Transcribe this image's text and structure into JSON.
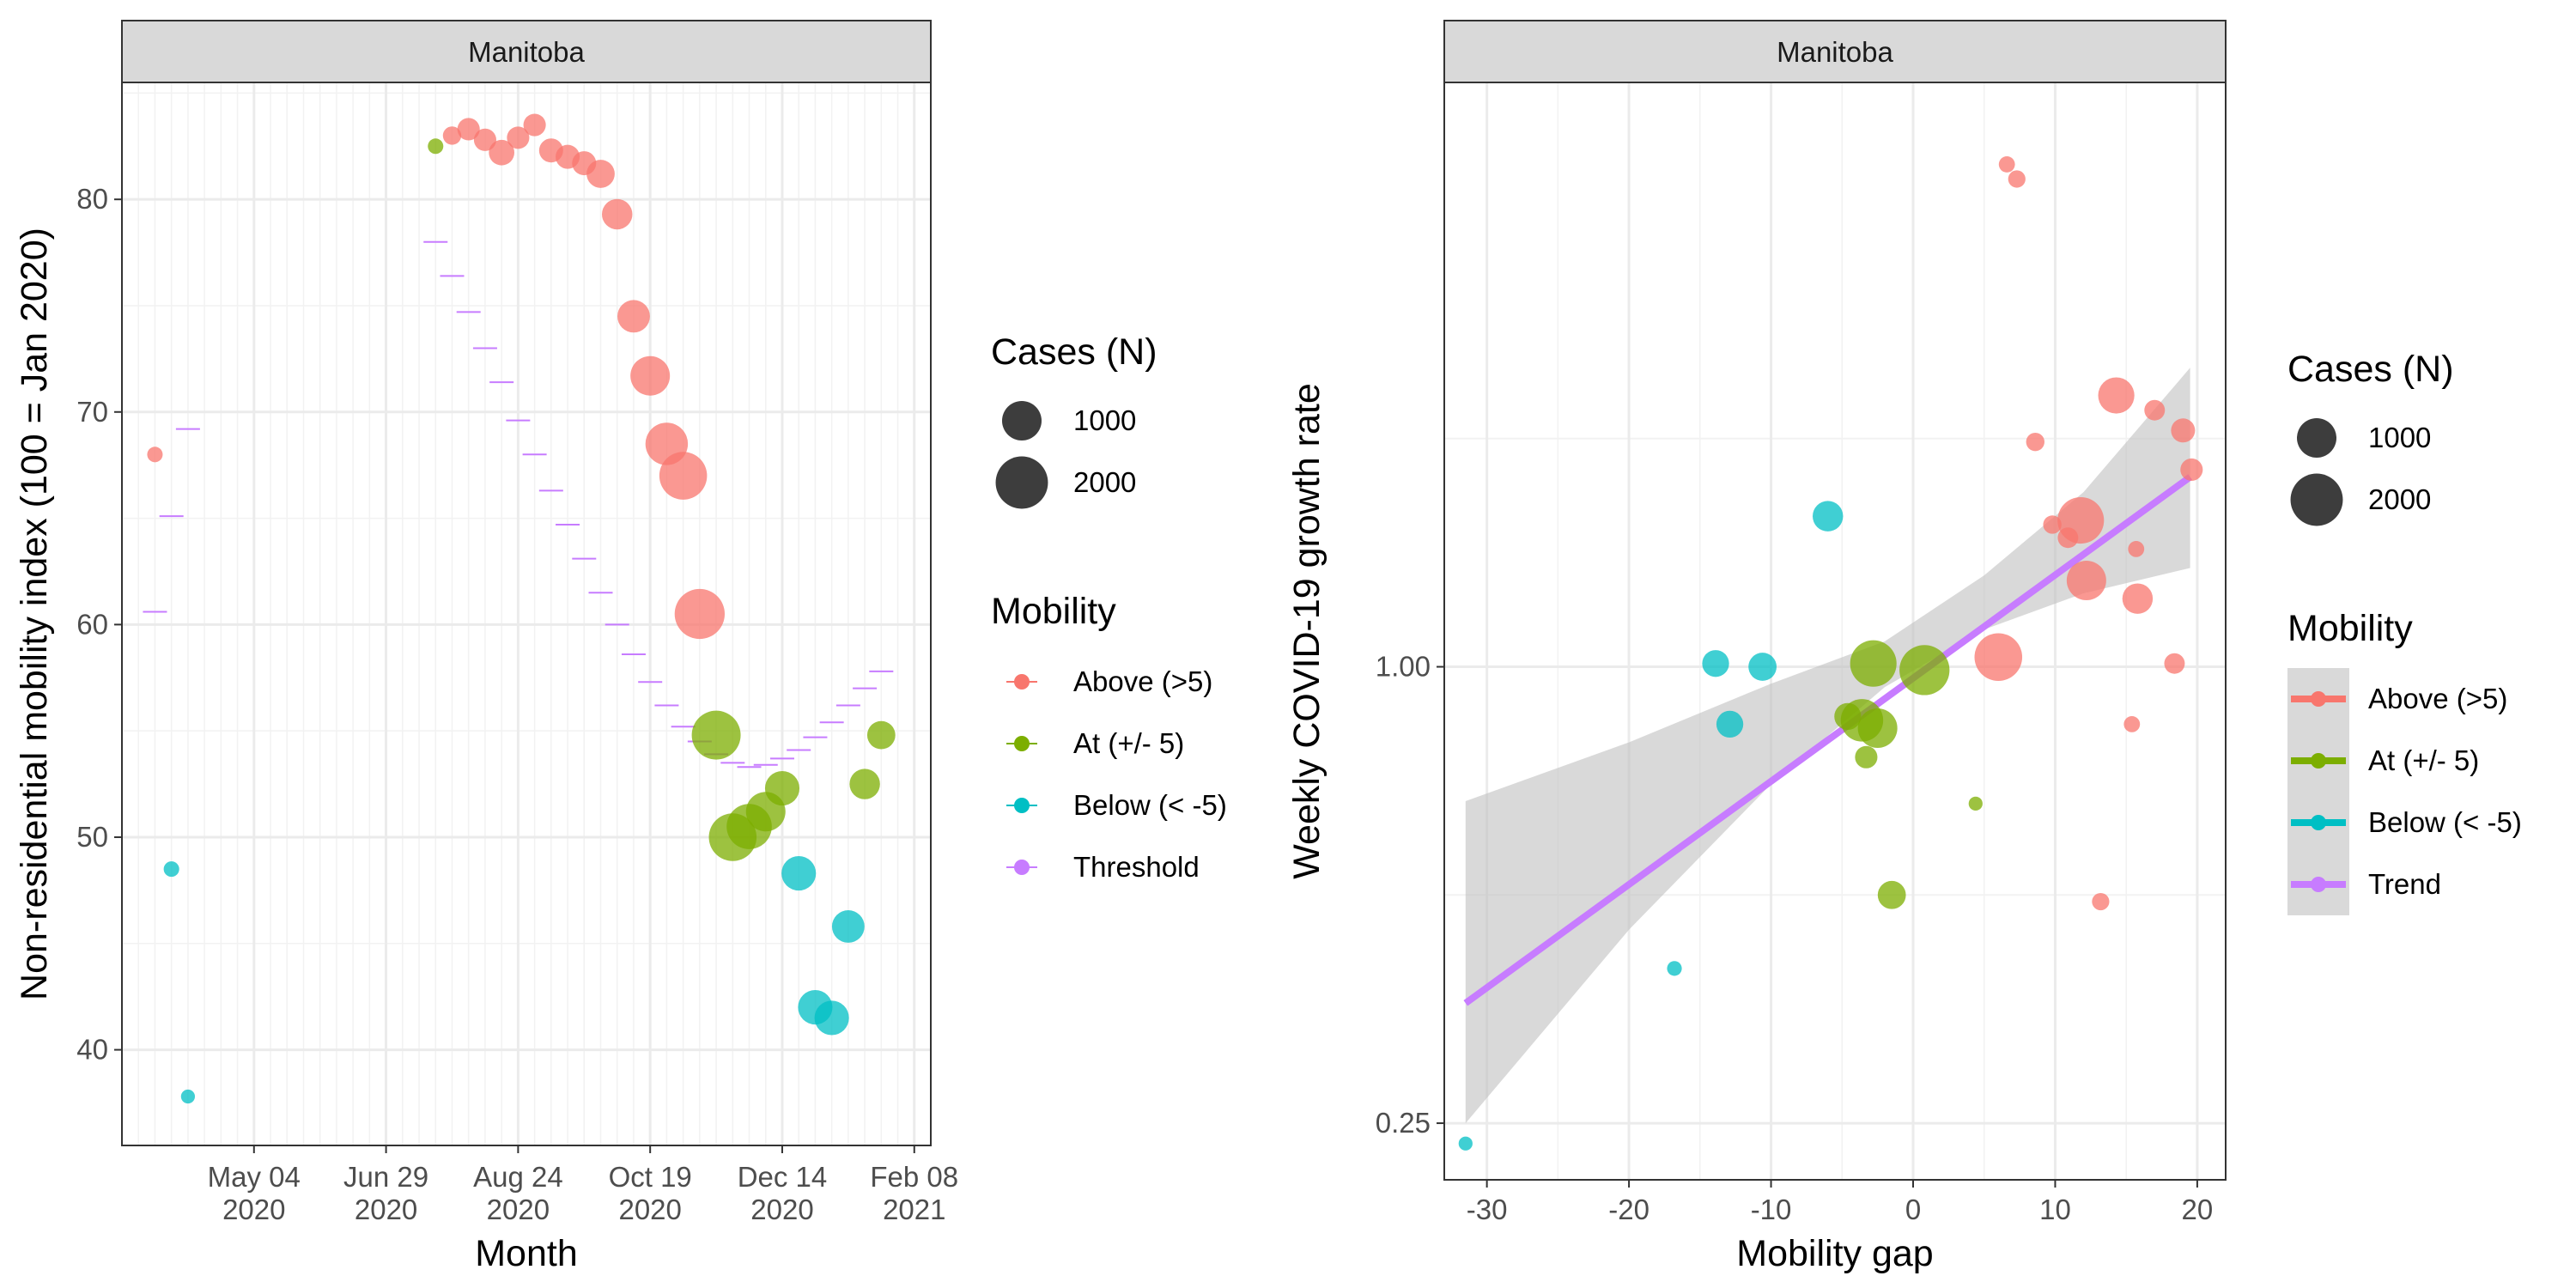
{
  "colors": {
    "above": "#F8766D",
    "at": "#7CAE00",
    "below": "#00BFC4",
    "threshold": "#C77CFF",
    "trend": "#C77CFF",
    "ribbon": "#bfbfbf",
    "strip_fill": "#d9d9d9",
    "grid_major": "#ebebeb"
  },
  "chart_data": [
    {
      "type": "scatter",
      "panel": "Manitoba",
      "xlabel": "Month",
      "ylabel": "Non-residential mobility index (100 = Jan 2020)",
      "x_ticks": [
        {
          "date": "2020-05-04",
          "line1": "May 04",
          "line2": "2020"
        },
        {
          "date": "2020-06-29",
          "line1": "Jun 29",
          "line2": "2020"
        },
        {
          "date": "2020-08-24",
          "line1": "Aug 24",
          "line2": "2020"
        },
        {
          "date": "2020-10-19",
          "line1": "Oct 19",
          "line2": "2020"
        },
        {
          "date": "2020-12-14",
          "line1": "Dec 14",
          "line2": "2020"
        },
        {
          "date": "2021-02-08",
          "line1": "Feb 08",
          "line2": "2021"
        }
      ],
      "xlim": [
        "2020-03-09",
        "2021-02-15"
      ],
      "y_ticks": [
        40,
        50,
        60,
        70,
        80
      ],
      "ylim": [
        35.5,
        85.5
      ],
      "points": [
        {
          "date": "2020-03-23",
          "value": 68.0,
          "cases": 50,
          "category": "above"
        },
        {
          "date": "2020-03-30",
          "value": 48.5,
          "cases": 50,
          "category": "below"
        },
        {
          "date": "2020-04-06",
          "value": 37.8,
          "cases": 30,
          "category": "below"
        },
        {
          "date": "2020-07-20",
          "value": 82.5,
          "cases": 50,
          "category": "at"
        },
        {
          "date": "2020-07-27",
          "value": 83.0,
          "cases": 100,
          "category": "above"
        },
        {
          "date": "2020-08-03",
          "value": 83.3,
          "cases": 200,
          "category": "above"
        },
        {
          "date": "2020-08-10",
          "value": 82.8,
          "cases": 200,
          "category": "above"
        },
        {
          "date": "2020-08-17",
          "value": 82.2,
          "cases": 300,
          "category": "above"
        },
        {
          "date": "2020-08-24",
          "value": 82.9,
          "cases": 200,
          "category": "above"
        },
        {
          "date": "2020-08-31",
          "value": 83.5,
          "cases": 200,
          "category": "above"
        },
        {
          "date": "2020-09-07",
          "value": 82.3,
          "cases": 250,
          "category": "above"
        },
        {
          "date": "2020-09-14",
          "value": 82.0,
          "cases": 250,
          "category": "above"
        },
        {
          "date": "2020-09-21",
          "value": 81.7,
          "cases": 250,
          "category": "above"
        },
        {
          "date": "2020-09-28",
          "value": 81.2,
          "cases": 400,
          "category": "above"
        },
        {
          "date": "2020-10-05",
          "value": 79.3,
          "cases": 500,
          "category": "above"
        },
        {
          "date": "2020-10-12",
          "value": 74.5,
          "cases": 600,
          "category": "above"
        },
        {
          "date": "2020-10-19",
          "value": 71.7,
          "cases": 1000,
          "category": "above"
        },
        {
          "date": "2020-10-26",
          "value": 68.5,
          "cases": 1200,
          "category": "above"
        },
        {
          "date": "2020-11-02",
          "value": 67.0,
          "cases": 1600,
          "category": "above"
        },
        {
          "date": "2020-11-09",
          "value": 60.5,
          "cases": 1800,
          "category": "above"
        },
        {
          "date": "2020-11-16",
          "value": 54.8,
          "cases": 1700,
          "category": "at"
        },
        {
          "date": "2020-11-23",
          "value": 50.0,
          "cases": 1600,
          "category": "at"
        },
        {
          "date": "2020-11-30",
          "value": 50.5,
          "cases": 1400,
          "category": "at"
        },
        {
          "date": "2020-12-07",
          "value": 51.2,
          "cases": 1000,
          "category": "at"
        },
        {
          "date": "2020-12-14",
          "value": 52.3,
          "cases": 700,
          "category": "at"
        },
        {
          "date": "2020-12-21",
          "value": 48.3,
          "cases": 700,
          "category": "below"
        },
        {
          "date": "2020-12-28",
          "value": 42.0,
          "cases": 700,
          "category": "below"
        },
        {
          "date": "2021-01-04",
          "value": 41.5,
          "cases": 700,
          "category": "below"
        },
        {
          "date": "2021-01-11",
          "value": 45.8,
          "cases": 600,
          "category": "below"
        },
        {
          "date": "2021-01-18",
          "value": 52.5,
          "cases": 500,
          "category": "at"
        },
        {
          "date": "2021-01-25",
          "value": 54.8,
          "cases": 400,
          "category": "at"
        }
      ],
      "thresholds": [
        {
          "date": "2020-03-23",
          "value": 60.6
        },
        {
          "date": "2020-03-30",
          "value": 65.1
        },
        {
          "date": "2020-04-06",
          "value": 69.2
        },
        {
          "date": "2020-07-20",
          "value": 78.0
        },
        {
          "date": "2020-07-27",
          "value": 76.4
        },
        {
          "date": "2020-08-03",
          "value": 74.7
        },
        {
          "date": "2020-08-10",
          "value": 73.0
        },
        {
          "date": "2020-08-17",
          "value": 71.4
        },
        {
          "date": "2020-08-24",
          "value": 69.6
        },
        {
          "date": "2020-08-31",
          "value": 68.0
        },
        {
          "date": "2020-09-07",
          "value": 66.3
        },
        {
          "date": "2020-09-14",
          "value": 64.7
        },
        {
          "date": "2020-09-21",
          "value": 63.1
        },
        {
          "date": "2020-09-28",
          "value": 61.5
        },
        {
          "date": "2020-10-05",
          "value": 60.0
        },
        {
          "date": "2020-10-12",
          "value": 58.6
        },
        {
          "date": "2020-10-19",
          "value": 57.3
        },
        {
          "date": "2020-10-26",
          "value": 56.2
        },
        {
          "date": "2020-11-02",
          "value": 55.2
        },
        {
          "date": "2020-11-09",
          "value": 54.5
        },
        {
          "date": "2020-11-16",
          "value": 53.9
        },
        {
          "date": "2020-11-23",
          "value": 53.5
        },
        {
          "date": "2020-11-30",
          "value": 53.3
        },
        {
          "date": "2020-12-07",
          "value": 53.4
        },
        {
          "date": "2020-12-14",
          "value": 53.7
        },
        {
          "date": "2020-12-21",
          "value": 54.1
        },
        {
          "date": "2020-12-28",
          "value": 54.7
        },
        {
          "date": "2021-01-04",
          "value": 55.4
        },
        {
          "date": "2021-01-11",
          "value": 56.2
        },
        {
          "date": "2021-01-18",
          "value": 57.0
        },
        {
          "date": "2021-01-25",
          "value": 57.8
        }
      ],
      "legend": {
        "size_title": "Cases (N)",
        "size_items": [
          {
            "label": "1000",
            "cases": 1000
          },
          {
            "label": "2000",
            "cases": 2000
          }
        ],
        "color_title": "Mobility",
        "color_items": [
          {
            "label": "Above (>5)",
            "key": "above"
          },
          {
            "label": "At (+/- 5)",
            "key": "at"
          },
          {
            "label": "Below (< -5)",
            "key": "below"
          },
          {
            "label": "Threshold",
            "key": "threshold"
          }
        ],
        "position": "right"
      }
    },
    {
      "type": "scatter",
      "panel": "Manitoba",
      "xlabel": "Mobility gap",
      "ylabel": "Weekly COVID-19 growth rate",
      "x_ticks": [
        -30,
        -20,
        -10,
        0,
        10,
        20
      ],
      "xlim": [
        -33,
        22
      ],
      "y_scale": "log",
      "y_ticks": [
        0.25,
        1.0
      ],
      "y_tick_labels": [
        "0.25",
        "1.00"
      ],
      "ylim": [
        0.2105,
        5.9
      ],
      "points": [
        {
          "gap": -31.5,
          "rate": 0.235,
          "cases": 30,
          "category": "below"
        },
        {
          "gap": -16.8,
          "rate": 0.4,
          "cases": 40,
          "category": "below"
        },
        {
          "gap": -13.9,
          "rate": 1.01,
          "cases": 350,
          "category": "below"
        },
        {
          "gap": -12.9,
          "rate": 0.84,
          "cases": 350,
          "category": "below"
        },
        {
          "gap": -10.6,
          "rate": 1.0,
          "cases": 400,
          "category": "below"
        },
        {
          "gap": -6.0,
          "rate": 1.58,
          "cases": 500,
          "category": "below"
        },
        {
          "gap": -4.6,
          "rate": 0.86,
          "cases": 350,
          "category": "at"
        },
        {
          "gap": -3.6,
          "rate": 0.85,
          "cases": 1200,
          "category": "at"
        },
        {
          "gap": -3.3,
          "rate": 0.76,
          "cases": 200,
          "category": "at"
        },
        {
          "gap": -2.8,
          "rate": 1.01,
          "cases": 1500,
          "category": "at"
        },
        {
          "gap": -2.5,
          "rate": 0.83,
          "cases": 1000,
          "category": "at"
        },
        {
          "gap": -1.5,
          "rate": 0.5,
          "cases": 400,
          "category": "at"
        },
        {
          "gap": 0.8,
          "rate": 0.99,
          "cases": 1800,
          "category": "at"
        },
        {
          "gap": 4.4,
          "rate": 0.66,
          "cases": 30,
          "category": "at"
        },
        {
          "gap": 6.0,
          "rate": 1.03,
          "cases": 1600,
          "category": "above"
        },
        {
          "gap": 6.6,
          "rate": 4.6,
          "cases": 60,
          "category": "above"
        },
        {
          "gap": 7.3,
          "rate": 4.4,
          "cases": 80,
          "category": "above"
        },
        {
          "gap": 8.6,
          "rate": 1.98,
          "cases": 100,
          "category": "above"
        },
        {
          "gap": 9.8,
          "rate": 1.54,
          "cases": 100,
          "category": "above"
        },
        {
          "gap": 10.9,
          "rate": 1.48,
          "cases": 150,
          "category": "above"
        },
        {
          "gap": 11.8,
          "rate": 1.56,
          "cases": 1500,
          "category": "above"
        },
        {
          "gap": 12.2,
          "rate": 1.3,
          "cases": 1000,
          "category": "above"
        },
        {
          "gap": 13.2,
          "rate": 0.49,
          "cases": 80,
          "category": "above"
        },
        {
          "gap": 14.3,
          "rate": 2.28,
          "cases": 800,
          "category": "above"
        },
        {
          "gap": 15.4,
          "rate": 0.84,
          "cases": 60,
          "category": "above"
        },
        {
          "gap": 15.7,
          "rate": 1.43,
          "cases": 60,
          "category": "above"
        },
        {
          "gap": 15.8,
          "rate": 1.23,
          "cases": 500,
          "category": "above"
        },
        {
          "gap": 17.0,
          "rate": 2.18,
          "cases": 150,
          "category": "above"
        },
        {
          "gap": 18.4,
          "rate": 1.01,
          "cases": 150,
          "category": "above"
        },
        {
          "gap": 19.0,
          "rate": 2.05,
          "cases": 250,
          "category": "above"
        },
        {
          "gap": 19.6,
          "rate": 1.82,
          "cases": 200,
          "category": "above"
        }
      ],
      "trend": {
        "x": [
          -31.5,
          19.5
        ],
        "y": [
          0.36,
          1.78
        ]
      },
      "ribbon": [
        {
          "x": -31.5,
          "lo": 0.25,
          "hi": 0.665
        },
        {
          "x": -20,
          "lo": 0.45,
          "hi": 0.795
        },
        {
          "x": -10,
          "lo": 0.7,
          "hi": 0.95
        },
        {
          "x": -2,
          "lo": 0.94,
          "hi": 1.08
        },
        {
          "x": 5,
          "lo": 1.12,
          "hi": 1.32
        },
        {
          "x": 12,
          "lo": 1.25,
          "hi": 1.7
        },
        {
          "x": 19.5,
          "lo": 1.35,
          "hi": 2.48
        }
      ],
      "legend": {
        "size_title": "Cases (N)",
        "size_items": [
          {
            "label": "1000",
            "cases": 1000
          },
          {
            "label": "2000",
            "cases": 2000
          }
        ],
        "color_title": "Mobility",
        "color_items": [
          {
            "label": "Above (>5)",
            "key": "above"
          },
          {
            "label": "At (+/- 5)",
            "key": "at"
          },
          {
            "label": "Below (< -5)",
            "key": "below"
          },
          {
            "label": "Trend",
            "key": "trend"
          }
        ],
        "position": "right"
      }
    }
  ]
}
